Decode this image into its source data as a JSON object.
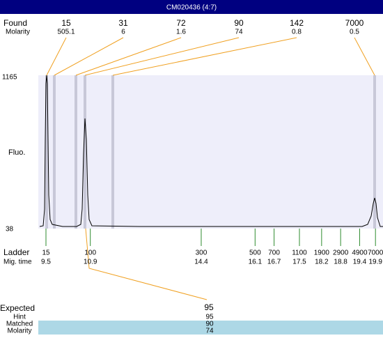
{
  "header": {
    "title": "CM020436 (4:7)"
  },
  "found": {
    "label": "Found",
    "molarity_label": "Molarity",
    "peaks": [
      {
        "size": 15,
        "molarity": 505.1
      },
      {
        "size": 31,
        "molarity": 6
      },
      {
        "size": 72,
        "molarity": 1.6
      },
      {
        "size": 90,
        "molarity": 74
      },
      {
        "size": 142,
        "molarity": 0.8
      },
      {
        "size": 7000,
        "molarity": 0.5
      }
    ]
  },
  "y_axis": {
    "label": "Fluo.",
    "max": 1165,
    "min": 38
  },
  "ladder": {
    "label": "Ladder",
    "mig_time_label": "Mig. time",
    "steps": [
      {
        "size": 15,
        "mig_time": 9.5
      },
      {
        "size": 100,
        "mig_time": 10.9
      },
      {
        "size": 300,
        "mig_time": 14.4
      },
      {
        "size": 500,
        "mig_time": 16.1
      },
      {
        "size": 700,
        "mig_time": 16.7
      },
      {
        "size": 1100,
        "mig_time": 17.5
      },
      {
        "size": 1900,
        "mig_time": 18.2
      },
      {
        "size": 2900,
        "mig_time": 18.8
      },
      {
        "size": 4900,
        "mig_time": 19.4
      },
      {
        "size": 7000,
        "mig_time": 19.9
      }
    ]
  },
  "expected": {
    "label": "Expected",
    "value": 95,
    "rows": [
      {
        "label": "Hint",
        "value": 95
      },
      {
        "label": "Matched",
        "value": 90
      },
      {
        "label": "Molarity",
        "value": 74
      }
    ]
  }
}
